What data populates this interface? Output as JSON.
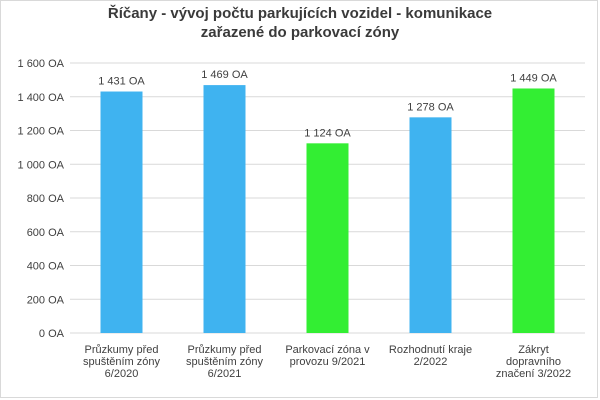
{
  "chart_data": {
    "type": "bar",
    "title_lines": [
      "Říčany - vývoj počtu parkujících vozidel - komunikace",
      "zařazené do parkovací zóny"
    ],
    "xlabel": "",
    "ylabel": "",
    "ylim": [
      0,
      1600
    ],
    "yticks": [
      0,
      200,
      400,
      600,
      800,
      1000,
      1200,
      1400,
      1600
    ],
    "ytick_labels": [
      "0 OA",
      "200 OA",
      "400 OA",
      "600 OA",
      "800 OA",
      "1 000 OA",
      "1 200 OA",
      "1 400 OA",
      "1 600 OA"
    ],
    "grid": true,
    "legend": "none",
    "categories": [
      [
        "Průzkumy před",
        "spuštěním zóny",
        "6/2020"
      ],
      [
        "Průzkumy před",
        "spuštěním zóny",
        "6/2021"
      ],
      [
        "Parkovací zóna v",
        "provozu 9/2021"
      ],
      [
        "Rozhodnutí kraje",
        "2/2022"
      ],
      [
        "Zákryt",
        "dopravního",
        "značení 3/2022"
      ]
    ],
    "values": [
      1431,
      1469,
      1124,
      1278,
      1449
    ],
    "data_labels": [
      "1 431 OA",
      "1 469 OA",
      "1 124 OA",
      "1 278 OA",
      "1 449 OA"
    ],
    "bar_colors": [
      "#3fb3f0",
      "#3fb3f0",
      "#33ee33",
      "#3fb3f0",
      "#33ee33"
    ],
    "colors": {
      "grid": "#d9d9d9",
      "text": "#404040"
    }
  }
}
